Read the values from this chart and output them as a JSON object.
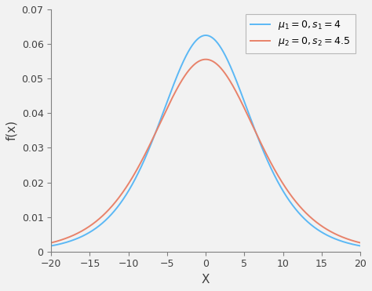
{
  "series": [
    {
      "mu": 0,
      "s": 4,
      "color": "#5BB8F5",
      "label": "$\\mu_1=0,s_1=4$"
    },
    {
      "mu": 0,
      "s": 4.5,
      "color": "#E8826A",
      "label": "$\\mu_2=0,s_2=4.5$"
    }
  ],
  "xlim": [
    -20,
    20
  ],
  "ylim": [
    0,
    0.07
  ],
  "xlabel": "X",
  "ylabel": "f(x)",
  "xticks": [
    -20,
    -15,
    -10,
    -5,
    0,
    5,
    10,
    15,
    20
  ],
  "yticks": [
    0,
    0.01,
    0.02,
    0.03,
    0.04,
    0.05,
    0.06,
    0.07
  ],
  "background_color": "#f2f2f2",
  "legend_loc": "upper right",
  "linewidth": 1.4,
  "spine_color": "#808080",
  "tick_color": "#808080",
  "label_color": "#404040"
}
